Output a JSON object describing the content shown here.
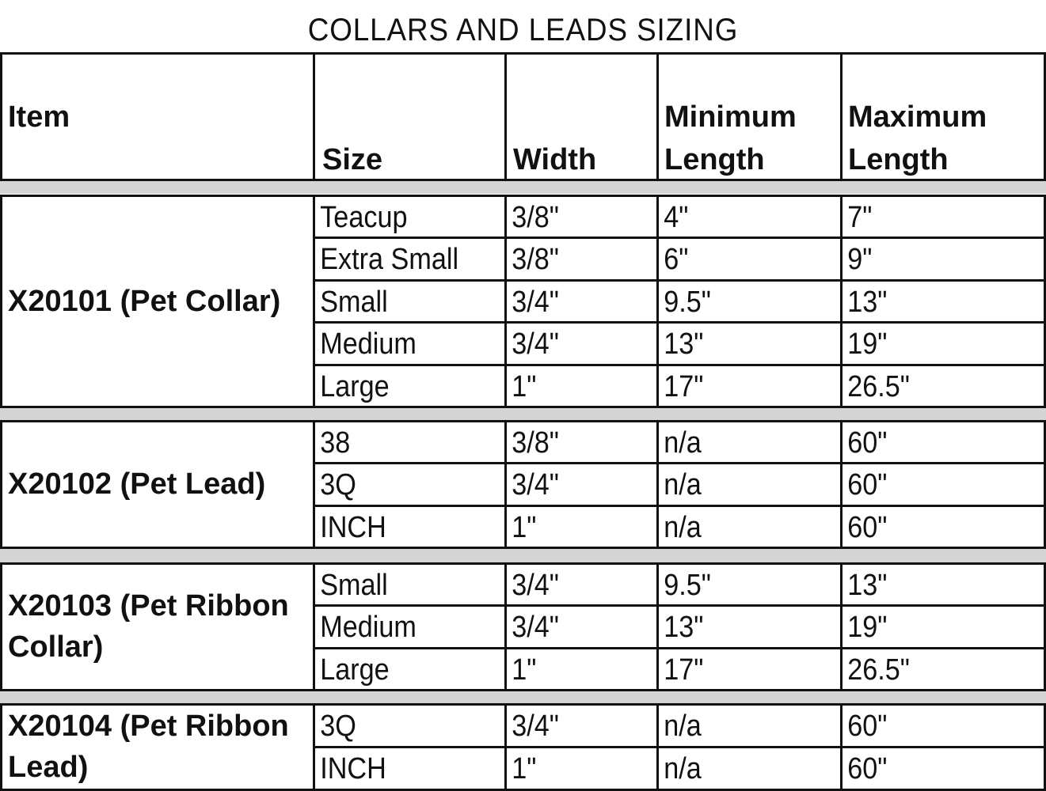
{
  "title": "COLLARS AND LEADS SIZING",
  "headers": {
    "item": "Item",
    "size": "Size",
    "width": "Width",
    "min_length_1": "Minimum",
    "min_length_2": "Length",
    "max_length_1": "Maximum",
    "max_length_2": "Length"
  },
  "groups": [
    {
      "item": "X20101 (Pet Collar)",
      "rows": [
        [
          "Teacup",
          "3/8\"",
          "4\"",
          "7\""
        ],
        [
          "Extra Small",
          "3/8\"",
          "6\"",
          "9\""
        ],
        [
          "Small",
          "3/4\"",
          "9.5\"",
          "13\""
        ],
        [
          "Medium",
          "3/4\"",
          "13\"",
          "19\""
        ],
        [
          "Large",
          "1\"",
          "17\"",
          "26.5\""
        ]
      ]
    },
    {
      "item": "X20102 (Pet Lead)",
      "rows": [
        [
          "38",
          "3/8\"",
          "n/a",
          "60\""
        ],
        [
          "3Q",
          "3/4\"",
          "n/a",
          "60\""
        ],
        [
          "INCH",
          "1\"",
          "n/a",
          "60\""
        ]
      ]
    },
    {
      "item": "X20103 (Pet Ribbon Collar)",
      "rows": [
        [
          "Small",
          "3/4\"",
          "9.5\"",
          "13\""
        ],
        [
          "Medium",
          "3/4\"",
          "13\"",
          "19\""
        ],
        [
          "Large",
          "1\"",
          "17\"",
          "26.5\""
        ]
      ]
    },
    {
      "item": "X20104 (Pet Ribbon Lead)",
      "rows": [
        [
          "3Q",
          "3/4\"",
          "n/a",
          "60\""
        ],
        [
          "INCH",
          "1\"",
          "n/a",
          "60\""
        ]
      ]
    }
  ]
}
